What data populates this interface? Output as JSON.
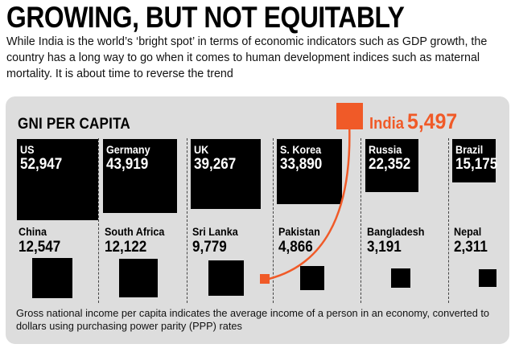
{
  "headline": "GROWING, BUT NOT EQUITABLY",
  "intro": "While India is the world’s ‘bright spot’ in terms of economic indicators such as GDP growth, the country has a long way to go when it comes to human development indices such as maternal mortality. It is about time to reverse the trend",
  "footnote": "Gross national income per capita indicates the average income of a person in an economy, converted to dollars using purchasing power parity (PPP) rates",
  "colors": {
    "highlight": "#f05a28",
    "box": "#000000",
    "panel": "#dddddd"
  },
  "chart_data": {
    "type": "area-squares",
    "title": "GNI PER CAPITA",
    "countries": [
      {
        "name": "US",
        "value": "52,947",
        "n": 52947
      },
      {
        "name": "Germany",
        "value": "43,919",
        "n": 43919
      },
      {
        "name": "UK",
        "value": "39,267",
        "n": 39267
      },
      {
        "name": "S. Korea",
        "value": "33,890",
        "n": 33890
      },
      {
        "name": "Russia",
        "value": "22,352",
        "n": 22352
      },
      {
        "name": "Brazil",
        "value": "15,175",
        "n": 15175
      },
      {
        "name": "China",
        "value": "12,547",
        "n": 12547
      },
      {
        "name": "South Africa",
        "value": "12,122",
        "n": 12122
      },
      {
        "name": "Sri Lanka",
        "value": "9,779",
        "n": 9779
      },
      {
        "name": "Pakistan",
        "value": "4,866",
        "n": 4866
      },
      {
        "name": "Bangladesh",
        "value": "3,191",
        "n": 3191
      },
      {
        "name": "Nepal",
        "value": "2,311",
        "n": 2311
      }
    ],
    "highlight": {
      "name": "India",
      "value": "5,497",
      "n": 5497
    }
  }
}
